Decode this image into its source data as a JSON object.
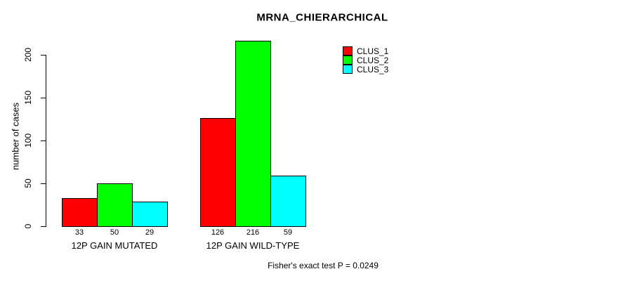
{
  "chart_data": {
    "type": "bar",
    "title": "MRNA_CHIERARCHICAL",
    "ylabel": "number of cases",
    "xlabel": "",
    "ylim": [
      0,
      220
    ],
    "yticks": [
      0,
      50,
      100,
      150,
      200
    ],
    "grid": false,
    "categories": [
      "12P GAIN MUTATED",
      "12P GAIN WILD-TYPE"
    ],
    "series": [
      {
        "name": "CLUS_1",
        "color": "#ff0000",
        "values": [
          33,
          126
        ]
      },
      {
        "name": "CLUS_2",
        "color": "#00ff00",
        "values": [
          50,
          216
        ]
      },
      {
        "name": "CLUS_3",
        "color": "#00ffff",
        "values": [
          29,
          59
        ]
      }
    ],
    "bar_value_labels": [
      [
        33,
        50,
        29
      ],
      [
        126,
        216,
        59
      ]
    ],
    "legend": {
      "position": "top-right",
      "entries": [
        {
          "label": "CLUS_1",
          "color": "#ff0000"
        },
        {
          "label": "CLUS_2",
          "color": "#00ff00"
        },
        {
          "label": "CLUS_3",
          "color": "#00ffff"
        }
      ]
    },
    "annotation": "Fisher's exact test P = 0.0249"
  },
  "colors": {
    "background": "#ffffff",
    "bar_border": "#000000",
    "text": "#000000"
  }
}
